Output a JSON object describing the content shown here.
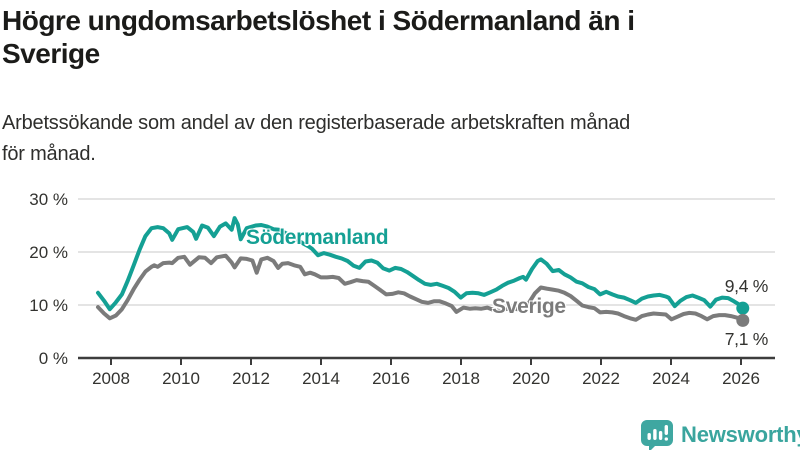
{
  "header": {
    "title": "Högre ungdomsarbetslöshet i Södermanland än i\nSverige",
    "subtitle": "Arbetssökande som andel av den registerbaserade arbetskraften månad\nför månad."
  },
  "footer": {
    "brand": "Newsworthy",
    "icon": "newsworthy-speech-bubble-bar-chart-icon",
    "brand_color": "#3aa59e"
  },
  "chart_data": {
    "type": "line",
    "title": "Högre ungdomsarbetslöshet i Södermanland än i Sverige",
    "subtitle": "Arbetssökande som andel av den registerbaserade arbetskraften månad för månad.",
    "unit": "%",
    "grid": "horizontal-only",
    "legend_position": "inline-labels-on-lines",
    "x_axis": {
      "ticks": [
        2008,
        2010,
        2012,
        2014,
        2016,
        2018,
        2020,
        2022,
        2024,
        2026
      ],
      "labels": [
        "2008",
        "2010",
        "2012",
        "2014",
        "2016",
        "2018",
        "2020",
        "2022",
        "2024",
        "2026"
      ],
      "range": [
        2007.6,
        2026.5
      ]
    },
    "y_axis": {
      "ticks": [
        0,
        10,
        20,
        30
      ],
      "labels": [
        "0 %",
        "10 %",
        "20 %",
        "30 %"
      ],
      "range": [
        0,
        32
      ]
    },
    "series": [
      {
        "name": "Södermanland",
        "color": "#14a094",
        "end_label": "9,4 %",
        "end_value": 9.4,
        "points": [
          [
            2008.0,
            12.3
          ],
          [
            2008.17,
            10.8
          ],
          [
            2008.33,
            9.2
          ],
          [
            2008.5,
            10.5
          ],
          [
            2008.67,
            12.0
          ],
          [
            2008.83,
            14.5
          ],
          [
            2009.0,
            17.5
          ],
          [
            2009.17,
            20.5
          ],
          [
            2009.33,
            23.0
          ],
          [
            2009.5,
            24.5
          ],
          [
            2009.67,
            24.7
          ],
          [
            2009.83,
            24.5
          ],
          [
            2010.0,
            23.5
          ],
          [
            2010.08,
            22.3
          ],
          [
            2010.25,
            24.3
          ],
          [
            2010.5,
            24.7
          ],
          [
            2010.67,
            23.8
          ],
          [
            2010.75,
            22.5
          ],
          [
            2010.92,
            25.0
          ],
          [
            2011.08,
            24.6
          ],
          [
            2011.25,
            23.0
          ],
          [
            2011.42,
            24.8
          ],
          [
            2011.58,
            25.4
          ],
          [
            2011.75,
            24.2
          ],
          [
            2011.83,
            26.4
          ],
          [
            2011.92,
            25.2
          ],
          [
            2012.0,
            22.4
          ],
          [
            2012.17,
            24.5
          ],
          [
            2012.42,
            25.0
          ],
          [
            2012.58,
            25.1
          ],
          [
            2012.75,
            24.8
          ],
          [
            2012.92,
            24.3
          ],
          [
            2013.08,
            24.2
          ],
          [
            2013.25,
            23.6
          ],
          [
            2013.42,
            23.0
          ],
          [
            2013.58,
            22.4
          ],
          [
            2013.75,
            21.6
          ],
          [
            2013.92,
            21.0
          ],
          [
            2014.0,
            20.6
          ],
          [
            2014.17,
            19.4
          ],
          [
            2014.33,
            19.8
          ],
          [
            2014.5,
            19.5
          ],
          [
            2014.67,
            19.1
          ],
          [
            2014.83,
            18.8
          ],
          [
            2015.0,
            18.3
          ],
          [
            2015.17,
            17.4
          ],
          [
            2015.33,
            17.0
          ],
          [
            2015.5,
            18.2
          ],
          [
            2015.67,
            18.4
          ],
          [
            2015.83,
            18.0
          ],
          [
            2016.0,
            16.9
          ],
          [
            2016.17,
            16.5
          ],
          [
            2016.33,
            17.0
          ],
          [
            2016.5,
            16.8
          ],
          [
            2016.67,
            16.2
          ],
          [
            2016.83,
            15.5
          ],
          [
            2017.0,
            14.7
          ],
          [
            2017.17,
            14.0
          ],
          [
            2017.33,
            13.8
          ],
          [
            2017.5,
            14.0
          ],
          [
            2017.67,
            13.6
          ],
          [
            2017.83,
            13.2
          ],
          [
            2018.0,
            12.5
          ],
          [
            2018.17,
            11.4
          ],
          [
            2018.33,
            12.2
          ],
          [
            2018.5,
            12.3
          ],
          [
            2018.67,
            12.2
          ],
          [
            2018.83,
            11.9
          ],
          [
            2019.0,
            12.4
          ],
          [
            2019.17,
            12.9
          ],
          [
            2019.33,
            13.6
          ],
          [
            2019.5,
            14.2
          ],
          [
            2019.67,
            14.6
          ],
          [
            2019.83,
            15.1
          ],
          [
            2019.92,
            15.3
          ],
          [
            2020.0,
            14.8
          ],
          [
            2020.17,
            16.8
          ],
          [
            2020.33,
            18.3
          ],
          [
            2020.42,
            18.6
          ],
          [
            2020.58,
            17.8
          ],
          [
            2020.75,
            16.4
          ],
          [
            2020.92,
            16.6
          ],
          [
            2021.08,
            15.8
          ],
          [
            2021.25,
            15.2
          ],
          [
            2021.42,
            14.4
          ],
          [
            2021.58,
            14.1
          ],
          [
            2021.75,
            13.4
          ],
          [
            2021.92,
            13.0
          ],
          [
            2022.08,
            12.0
          ],
          [
            2022.25,
            12.5
          ],
          [
            2022.42,
            12.0
          ],
          [
            2022.58,
            11.6
          ],
          [
            2022.75,
            11.4
          ],
          [
            2022.92,
            10.9
          ],
          [
            2023.08,
            10.4
          ],
          [
            2023.25,
            11.2
          ],
          [
            2023.42,
            11.6
          ],
          [
            2023.58,
            11.8
          ],
          [
            2023.75,
            11.9
          ],
          [
            2023.92,
            11.6
          ],
          [
            2024.0,
            11.4
          ],
          [
            2024.17,
            9.8
          ],
          [
            2024.33,
            10.8
          ],
          [
            2024.5,
            11.5
          ],
          [
            2024.67,
            11.8
          ],
          [
            2024.83,
            11.4
          ],
          [
            2025.0,
            10.9
          ],
          [
            2025.17,
            9.7
          ],
          [
            2025.33,
            11.0
          ],
          [
            2025.5,
            11.4
          ],
          [
            2025.67,
            11.3
          ],
          [
            2025.83,
            10.7
          ],
          [
            2026.0,
            10.0
          ],
          [
            2026.08,
            9.4
          ]
        ]
      },
      {
        "name": "Sverige",
        "color": "#7b7b7b",
        "end_label": "7,1 %",
        "end_value": 7.1,
        "points": [
          [
            2008.0,
            9.6
          ],
          [
            2008.17,
            8.4
          ],
          [
            2008.33,
            7.5
          ],
          [
            2008.5,
            8.0
          ],
          [
            2008.67,
            9.2
          ],
          [
            2008.83,
            10.9
          ],
          [
            2009.0,
            13.0
          ],
          [
            2009.17,
            14.8
          ],
          [
            2009.33,
            16.3
          ],
          [
            2009.5,
            17.2
          ],
          [
            2009.58,
            17.5
          ],
          [
            2009.67,
            17.2
          ],
          [
            2009.83,
            17.9
          ],
          [
            2010.0,
            18.0
          ],
          [
            2010.08,
            17.9
          ],
          [
            2010.25,
            18.9
          ],
          [
            2010.42,
            19.1
          ],
          [
            2010.58,
            17.6
          ],
          [
            2010.83,
            19.0
          ],
          [
            2011.0,
            18.9
          ],
          [
            2011.17,
            17.9
          ],
          [
            2011.33,
            19.0
          ],
          [
            2011.58,
            19.3
          ],
          [
            2011.75,
            18.0
          ],
          [
            2011.83,
            17.1
          ],
          [
            2012.0,
            18.8
          ],
          [
            2012.17,
            18.7
          ],
          [
            2012.33,
            18.4
          ],
          [
            2012.45,
            16.1
          ],
          [
            2012.58,
            18.6
          ],
          [
            2012.75,
            18.9
          ],
          [
            2012.92,
            18.3
          ],
          [
            2013.05,
            17.0
          ],
          [
            2013.17,
            17.8
          ],
          [
            2013.33,
            17.9
          ],
          [
            2013.5,
            17.5
          ],
          [
            2013.67,
            17.2
          ],
          [
            2013.8,
            15.8
          ],
          [
            2013.95,
            16.1
          ],
          [
            2014.08,
            15.8
          ],
          [
            2014.25,
            15.2
          ],
          [
            2014.42,
            15.2
          ],
          [
            2014.58,
            15.3
          ],
          [
            2014.75,
            15.1
          ],
          [
            2014.92,
            14.0
          ],
          [
            2015.08,
            14.3
          ],
          [
            2015.25,
            14.7
          ],
          [
            2015.42,
            14.5
          ],
          [
            2015.58,
            14.4
          ],
          [
            2015.75,
            13.6
          ],
          [
            2015.9,
            12.9
          ],
          [
            2016.08,
            12.0
          ],
          [
            2016.25,
            12.1
          ],
          [
            2016.42,
            12.4
          ],
          [
            2016.58,
            12.2
          ],
          [
            2016.75,
            11.6
          ],
          [
            2016.92,
            11.1
          ],
          [
            2017.08,
            10.6
          ],
          [
            2017.25,
            10.4
          ],
          [
            2017.42,
            10.7
          ],
          [
            2017.58,
            10.7
          ],
          [
            2017.75,
            10.3
          ],
          [
            2017.92,
            9.8
          ],
          [
            2018.05,
            8.7
          ],
          [
            2018.25,
            9.5
          ],
          [
            2018.42,
            9.3
          ],
          [
            2018.58,
            9.4
          ],
          [
            2018.75,
            9.3
          ],
          [
            2018.92,
            9.5
          ],
          [
            2019.08,
            9.1
          ],
          [
            2019.25,
            8.9
          ],
          [
            2019.42,
            9.2
          ],
          [
            2019.58,
            9.4
          ],
          [
            2019.75,
            9.2
          ],
          [
            2019.92,
            9.5
          ],
          [
            2020.08,
            10.4
          ],
          [
            2020.25,
            12.2
          ],
          [
            2020.42,
            13.3
          ],
          [
            2020.58,
            13.1
          ],
          [
            2020.75,
            12.9
          ],
          [
            2020.92,
            12.7
          ],
          [
            2021.08,
            12.3
          ],
          [
            2021.25,
            11.7
          ],
          [
            2021.42,
            10.8
          ],
          [
            2021.58,
            9.9
          ],
          [
            2021.75,
            9.6
          ],
          [
            2021.92,
            9.4
          ],
          [
            2022.08,
            8.6
          ],
          [
            2022.25,
            8.7
          ],
          [
            2022.42,
            8.6
          ],
          [
            2022.58,
            8.4
          ],
          [
            2022.75,
            7.9
          ],
          [
            2022.92,
            7.5
          ],
          [
            2023.08,
            7.2
          ],
          [
            2023.25,
            7.9
          ],
          [
            2023.42,
            8.2
          ],
          [
            2023.58,
            8.4
          ],
          [
            2023.75,
            8.3
          ],
          [
            2023.92,
            8.2
          ],
          [
            2024.08,
            7.3
          ],
          [
            2024.25,
            7.8
          ],
          [
            2024.42,
            8.3
          ],
          [
            2024.58,
            8.5
          ],
          [
            2024.75,
            8.4
          ],
          [
            2024.92,
            7.9
          ],
          [
            2025.08,
            7.3
          ],
          [
            2025.25,
            7.9
          ],
          [
            2025.42,
            8.1
          ],
          [
            2025.58,
            8.1
          ],
          [
            2025.75,
            7.9
          ],
          [
            2025.92,
            7.6
          ],
          [
            2026.08,
            7.1
          ]
        ]
      }
    ]
  }
}
